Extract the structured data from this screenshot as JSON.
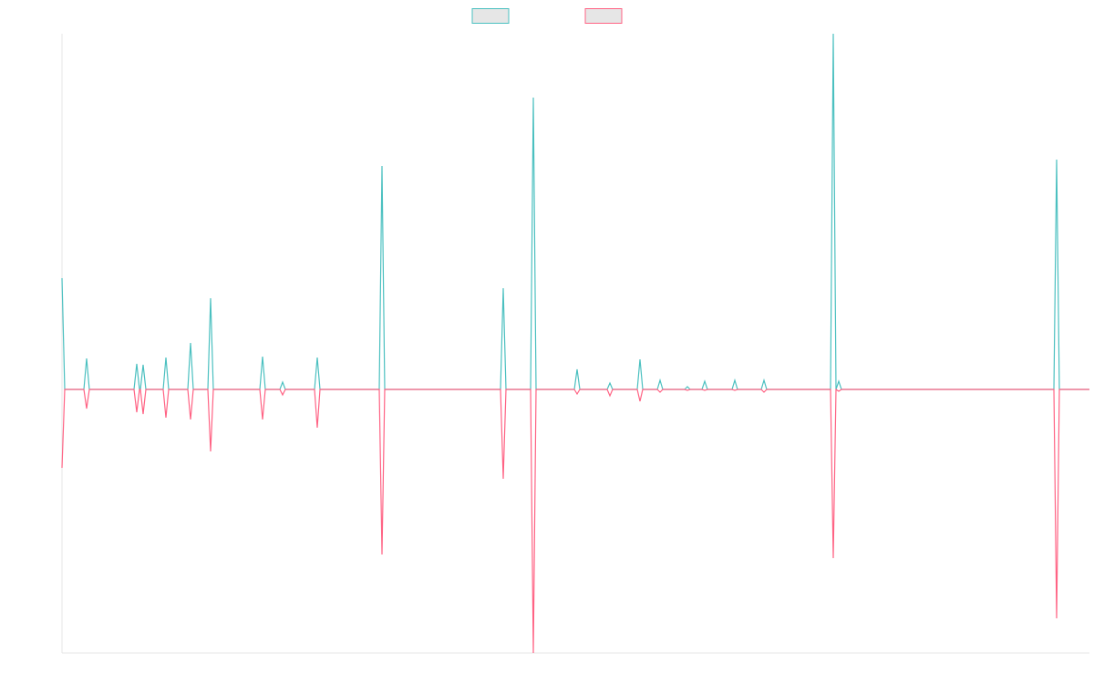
{
  "chart_data": {
    "type": "line",
    "x": [
      0,
      3,
      24,
      27,
      30,
      79,
      82,
      85,
      86,
      89,
      92,
      111,
      114,
      117,
      138,
      141,
      144,
      160,
      163,
      166,
      217,
      220,
      223,
      239,
      242,
      245,
      277,
      280,
      283,
      348,
      351,
      354,
      481,
      484,
      487,
      514,
      517,
      520,
      562,
      565,
      568,
      598,
      601,
      604,
      631,
      634,
      637,
      653,
      656,
      659,
      683,
      686,
      689,
      702,
      705,
      708,
      735,
      738,
      741,
      767,
      770,
      773,
      843,
      846,
      849,
      852,
      855,
      1088,
      1091,
      1094,
      1127
    ],
    "series": [
      {
        "color": "#4bc0c0",
        "values": [
          122,
          0,
          0,
          34,
          0,
          0,
          28,
          0,
          0,
          27,
          0,
          0,
          35,
          0,
          0,
          51,
          0,
          0,
          100,
          0,
          0,
          36,
          0,
          0,
          8,
          0,
          0,
          35,
          0,
          0,
          245,
          0,
          0,
          111,
          0,
          0,
          320,
          0,
          0,
          22,
          0,
          0,
          7,
          0,
          0,
          33,
          0,
          0,
          10,
          0,
          0,
          3,
          0,
          0,
          9,
          0,
          0,
          10,
          0,
          0,
          10,
          0,
          0,
          390,
          0,
          9,
          0,
          0,
          252,
          0,
          0
        ]
      },
      {
        "color": "#ff6384",
        "values": [
          -86,
          0,
          0,
          -21,
          0,
          0,
          -25,
          0,
          0,
          -27,
          0,
          0,
          -31,
          0,
          0,
          -33,
          0,
          0,
          -68,
          0,
          0,
          -33,
          0,
          0,
          -6,
          0,
          0,
          -42,
          0,
          0,
          -181,
          0,
          0,
          -98,
          0,
          0,
          -289,
          0,
          0,
          -5,
          0,
          0,
          -7,
          0,
          0,
          -13,
          0,
          0,
          -3,
          0,
          0,
          -1,
          0,
          0,
          -1,
          0,
          0,
          -1,
          0,
          0,
          -3,
          0,
          0,
          -185,
          0,
          -2,
          0,
          0,
          -251,
          0,
          0
        ]
      }
    ],
    "xlim": [
      0,
      1127
    ],
    "ylim": [
      -289,
      390
    ],
    "legend": "top"
  }
}
